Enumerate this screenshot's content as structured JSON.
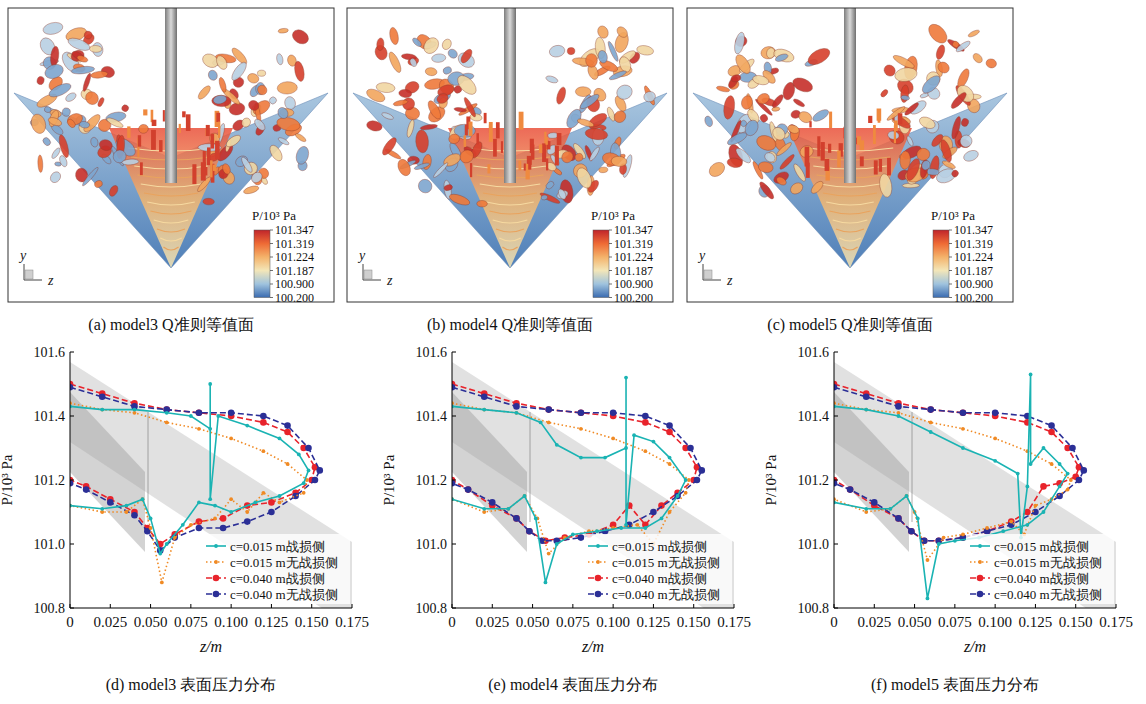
{
  "images": [
    {
      "caption": "(a) model3 Q准则等值面",
      "axis_labels": [
        "y",
        "z"
      ],
      "colorbar": {
        "title": "P/10³ Pa",
        "ticks": [
          101.347,
          101.319,
          101.224,
          101.187,
          {
            "value": 100.9,
            "label": "100.900"
          },
          {
            "value": 100.2,
            "label": "100.200"
          }
        ],
        "colors": [
          "#c0242a",
          "#ee6a35",
          "#f4b26a",
          "#f3e6b8",
          "#9fc3de",
          "#3a6bb0"
        ]
      }
    },
    {
      "caption": "(b) model4 Q准则等值面",
      "axis_labels": [
        "y",
        "z"
      ],
      "colorbar": {
        "title": "P/10³ Pa",
        "ticks": [
          101.347,
          101.319,
          101.224,
          101.187,
          {
            "value": 100.9,
            "label": "100.900"
          },
          {
            "value": 100.2,
            "label": "100.200"
          }
        ],
        "colors": [
          "#c0242a",
          "#ee6a35",
          "#f4b26a",
          "#f3e6b8",
          "#9fc3de",
          "#3a6bb0"
        ]
      }
    },
    {
      "caption": "(c) model5 Q准则等值面",
      "axis_labels": [
        "y",
        "z"
      ],
      "colorbar": {
        "title": "P/10³ Pa",
        "ticks": [
          101.347,
          101.319,
          101.224,
          101.187,
          {
            "value": 100.9,
            "label": "100.900"
          },
          {
            "value": 100.2,
            "label": "100.200"
          }
        ],
        "colors": [
          "#c0242a",
          "#ee6a35",
          "#f4b26a",
          "#f3e6b8",
          "#9fc3de",
          "#3a6bb0"
        ]
      }
    }
  ],
  "chart_data": [
    {
      "type": "line",
      "title": "(d) model3 表面压力分布",
      "xlabel": "z/m",
      "ylabel": "P/10³ Pa",
      "xlim": [
        0,
        0.175
      ],
      "ylim": [
        100.8,
        101.6
      ],
      "xticks": [
        0,
        0.025,
        {
          "value": 0.05,
          "label": "0.050"
        },
        0.075,
        {
          "value": 0.1,
          "label": "0.100"
        },
        0.125,
        {
          "value": 0.15,
          "label": "0.150"
        },
        0.175
      ],
      "yticks": [
        100.8,
        {
          "value": 101,
          "label": "101.0"
        },
        101.2,
        101.4,
        101.6
      ],
      "legend": "lower right",
      "series": [
        {
          "name": "c=0.015 m战损侧",
          "color": "#1ab3b3",
          "line_style": "solid",
          "marker": "dot",
          "x": [
            0,
            0.02,
            0.04,
            0.06,
            0.075,
            0.087,
            0.087,
            0.087,
            0.092,
            0.11,
            0.13,
            0.142,
            0.148,
            0.145,
            0.13,
            0.115,
            0.1,
            0.09,
            0.08,
            0.07,
            0.06,
            0.056,
            0.05,
            0.045,
            0.035,
            0.02,
            0
          ],
          "values": [
            101.43,
            101.42,
            101.42,
            101.41,
            101.4,
            101.36,
            101.5,
            101.14,
            101.4,
            101.37,
            101.33,
            101.28,
            101.23,
            101.19,
            101.15,
            101.13,
            101.1,
            101.12,
            101.13,
            101.06,
            101.0,
            100.97,
            101.08,
            101.14,
            101.12,
            101.11,
            101.12
          ]
        },
        {
          "name": "c=0.015 m无战损侧",
          "color": "#f08a24",
          "line_style": "dotted",
          "marker": "dot",
          "x": [
            0,
            0.02,
            0.04,
            0.06,
            0.08,
            0.1,
            0.12,
            0.135,
            0.147,
            0.145,
            0.13,
            0.12,
            0.11,
            0.1,
            0.09,
            0.075,
            0.065,
            0.057,
            0.05,
            0.045,
            0.035,
            0.02,
            0
          ],
          "values": [
            101.44,
            101.42,
            101.41,
            101.38,
            101.36,
            101.33,
            101.29,
            101.25,
            101.2,
            101.16,
            101.13,
            101.16,
            101.1,
            101.14,
            101.08,
            101.06,
            101.02,
            100.88,
            101.05,
            101.14,
            101.1,
            101.1,
            101.12
          ]
        },
        {
          "name": "c=0.040 m战损侧",
          "color": "#e8232b",
          "line_style": "dashed",
          "marker": "circle",
          "x": [
            0,
            0.02,
            0.04,
            0.06,
            0.08,
            0.1,
            0.12,
            0.135,
            0.145,
            0.152,
            0.15,
            0.14,
            0.125,
            0.11,
            0.095,
            0.08,
            0.065,
            0.056,
            0.048,
            0.04,
            0.025,
            0.01,
            0
          ],
          "values": [
            101.5,
            101.47,
            101.44,
            101.42,
            101.41,
            101.4,
            101.38,
            101.35,
            101.3,
            101.24,
            101.2,
            101.16,
            101.13,
            101.12,
            101.08,
            101.07,
            101.03,
            101.0,
            101.05,
            101.1,
            101.14,
            101.18,
            101.2
          ]
        },
        {
          "name": "c=0.040 m无战损侧",
          "color": "#2b2f96",
          "line_style": "dashed",
          "marker": "circle",
          "x": [
            0,
            0.02,
            0.04,
            0.06,
            0.08,
            0.1,
            0.12,
            0.135,
            0.148,
            0.155,
            0.152,
            0.14,
            0.125,
            0.11,
            0.095,
            0.08,
            0.065,
            0.056,
            0.048,
            0.04,
            0.025,
            0.01,
            0
          ],
          "values": [
            101.49,
            101.46,
            101.43,
            101.42,
            101.41,
            101.41,
            101.4,
            101.37,
            101.3,
            101.23,
            101.2,
            101.15,
            101.1,
            101.07,
            101.05,
            101.05,
            101.02,
            100.98,
            101.04,
            101.09,
            101.13,
            101.17,
            101.19
          ]
        }
      ]
    },
    {
      "type": "line",
      "title": "(e) model4 表面压力分布",
      "xlabel": "z/m",
      "ylabel": "P/10³ Pa",
      "xlim": [
        0,
        0.175
      ],
      "ylim": [
        100.8,
        101.6
      ],
      "xticks": [
        0,
        0.025,
        {
          "value": 0.05,
          "label": "0.050"
        },
        0.075,
        {
          "value": 0.1,
          "label": "0.100"
        },
        0.125,
        {
          "value": 0.15,
          "label": "0.150"
        },
        0.175
      ],
      "yticks": [
        100.8,
        {
          "value": 101,
          "label": "101.0"
        },
        101.2,
        101.4,
        101.6
      ],
      "legend": "lower right",
      "series": [
        {
          "name": "c=0.015 m战损侧",
          "color": "#1ab3b3",
          "line_style": "solid",
          "marker": "dot",
          "x": [
            0,
            0.02,
            0.04,
            0.055,
            0.065,
            0.08,
            0.095,
            0.108,
            0.108,
            0.108,
            0.113,
            0.125,
            0.135,
            0.145,
            0.14,
            0.13,
            0.12,
            0.105,
            0.09,
            0.075,
            0.065,
            0.058,
            0.052,
            0.045,
            0.035,
            0.02,
            0
          ],
          "values": [
            101.43,
            101.42,
            101.41,
            101.38,
            101.31,
            101.27,
            101.27,
            101.3,
            101.52,
            101.06,
            101.34,
            101.32,
            101.27,
            101.2,
            101.15,
            101.08,
            101.05,
            101.05,
            101.04,
            101.03,
            101.0,
            100.88,
            101.08,
            101.15,
            101.11,
            101.11,
            101.14
          ]
        },
        {
          "name": "c=0.015 m无战损侧",
          "color": "#f08a24",
          "line_style": "dotted",
          "marker": "dot",
          "x": [
            0,
            0.02,
            0.04,
            0.06,
            0.08,
            0.1,
            0.12,
            0.135,
            0.147,
            0.145,
            0.135,
            0.125,
            0.115,
            0.1,
            0.085,
            0.07,
            0.06,
            0.053,
            0.045,
            0.035,
            0.02,
            0
          ],
          "values": [
            101.44,
            101.42,
            101.41,
            101.38,
            101.36,
            101.33,
            101.29,
            101.25,
            101.2,
            101.16,
            101.1,
            101.0,
            101.06,
            101.05,
            101.04,
            101.02,
            100.97,
            101.08,
            101.15,
            101.11,
            101.1,
            101.14
          ]
        },
        {
          "name": "c=0.040 m战损侧",
          "color": "#e8232b",
          "line_style": "dashed",
          "marker": "circle",
          "x": [
            0,
            0.02,
            0.04,
            0.06,
            0.08,
            0.1,
            0.12,
            0.135,
            0.145,
            0.152,
            0.15,
            0.14,
            0.13,
            0.12,
            0.11,
            0.1,
            0.085,
            0.07,
            0.058,
            0.048,
            0.04,
            0.025,
            0.01,
            0
          ],
          "values": [
            101.5,
            101.47,
            101.44,
            101.42,
            101.41,
            101.4,
            101.38,
            101.35,
            101.3,
            101.24,
            101.2,
            101.16,
            101.12,
            101.06,
            101.12,
            101.06,
            101.03,
            101.02,
            101.01,
            101.04,
            101.08,
            101.12,
            101.17,
            101.2
          ]
        },
        {
          "name": "c=0.040 m无战损侧",
          "color": "#2b2f96",
          "line_style": "dashed",
          "marker": "circle",
          "x": [
            0,
            0.02,
            0.04,
            0.06,
            0.08,
            0.1,
            0.12,
            0.135,
            0.148,
            0.155,
            0.152,
            0.14,
            0.125,
            0.11,
            0.095,
            0.08,
            0.065,
            0.056,
            0.048,
            0.04,
            0.025,
            0.01,
            0
          ],
          "values": [
            101.49,
            101.46,
            101.43,
            101.42,
            101.41,
            101.41,
            101.4,
            101.37,
            101.3,
            101.23,
            101.2,
            101.15,
            101.1,
            101.06,
            101.04,
            101.02,
            101.01,
            101.01,
            101.04,
            101.08,
            101.13,
            101.17,
            101.19
          ]
        }
      ]
    },
    {
      "type": "line",
      "title": "(f) model5 表面压力分布",
      "xlabel": "z/m",
      "ylabel": "P/10³ Pa",
      "xlim": [
        0,
        0.175
      ],
      "ylim": [
        100.8,
        101.6
      ],
      "xticks": [
        0,
        0.025,
        {
          "value": 0.05,
          "label": "0.050"
        },
        0.075,
        {
          "value": 0.1,
          "label": "0.100"
        },
        0.125,
        {
          "value": 0.15,
          "label": "0.150"
        },
        0.175
      ],
      "yticks": [
        100.8,
        {
          "value": 101,
          "label": "101.0"
        },
        101.2,
        101.4,
        101.6
      ],
      "legend": "lower right",
      "series": [
        {
          "name": "c=0.015 m战损侧",
          "color": "#1ab3b3",
          "line_style": "solid",
          "marker": "dot",
          "x": [
            0,
            0.02,
            0.04,
            0.06,
            0.08,
            0.1,
            0.114,
            0.116,
            0.12,
            0.122,
            0.122,
            0.13,
            0.14,
            0.145,
            0.14,
            0.13,
            0.12,
            0.105,
            0.09,
            0.075,
            0.065,
            0.058,
            0.052,
            0.045,
            0.035,
            0.02,
            0
          ],
          "values": [
            101.43,
            101.42,
            101.4,
            101.35,
            101.3,
            101.26,
            101.22,
            101.02,
            101.18,
            101.53,
            101.25,
            101.3,
            101.25,
            101.22,
            101.18,
            101.1,
            101.06,
            101.04,
            101.02,
            101.01,
            101.0,
            100.83,
            101.08,
            101.15,
            101.11,
            101.11,
            101.13
          ]
        },
        {
          "name": "c=0.015 m无战损侧",
          "color": "#f08a24",
          "line_style": "dotted",
          "marker": "dot",
          "x": [
            0,
            0.02,
            0.04,
            0.06,
            0.08,
            0.1,
            0.12,
            0.135,
            0.147,
            0.145,
            0.135,
            0.125,
            0.118,
            0.11,
            0.095,
            0.08,
            0.068,
            0.058,
            0.05,
            0.045,
            0.035,
            0.02,
            0
          ],
          "values": [
            101.44,
            101.42,
            101.41,
            101.38,
            101.36,
            101.33,
            101.29,
            101.25,
            101.2,
            101.17,
            101.14,
            101.12,
            101.03,
            101.07,
            101.05,
            101.03,
            101.02,
            100.95,
            101.1,
            101.15,
            101.11,
            101.1,
            101.14
          ]
        },
        {
          "name": "c=0.040 m战损侧",
          "color": "#e8232b",
          "line_style": "dashed",
          "marker": "circle",
          "x": [
            0,
            0.02,
            0.04,
            0.06,
            0.08,
            0.1,
            0.12,
            0.135,
            0.145,
            0.152,
            0.15,
            0.14,
            0.13,
            0.12,
            0.11,
            0.095,
            0.08,
            0.065,
            0.056,
            0.048,
            0.04,
            0.025,
            0.01,
            0
          ],
          "values": [
            101.5,
            101.47,
            101.44,
            101.42,
            101.41,
            101.4,
            101.38,
            101.35,
            101.3,
            101.24,
            101.21,
            101.19,
            101.18,
            101.1,
            101.07,
            101.04,
            101.02,
            101.01,
            101.01,
            101.04,
            101.08,
            101.12,
            101.17,
            101.2
          ]
        },
        {
          "name": "c=0.040 m无战损侧",
          "color": "#2b2f96",
          "line_style": "dashed",
          "marker": "circle",
          "x": [
            0,
            0.02,
            0.04,
            0.06,
            0.08,
            0.1,
            0.12,
            0.135,
            0.148,
            0.155,
            0.152,
            0.14,
            0.125,
            0.11,
            0.095,
            0.08,
            0.065,
            0.056,
            0.048,
            0.04,
            0.025,
            0.01,
            0
          ],
          "values": [
            101.49,
            101.46,
            101.43,
            101.42,
            101.41,
            101.41,
            101.4,
            101.37,
            101.3,
            101.23,
            101.2,
            101.15,
            101.1,
            101.06,
            101.04,
            101.02,
            101.01,
            101.01,
            101.04,
            101.08,
            101.13,
            101.17,
            101.19
          ]
        }
      ]
    }
  ]
}
